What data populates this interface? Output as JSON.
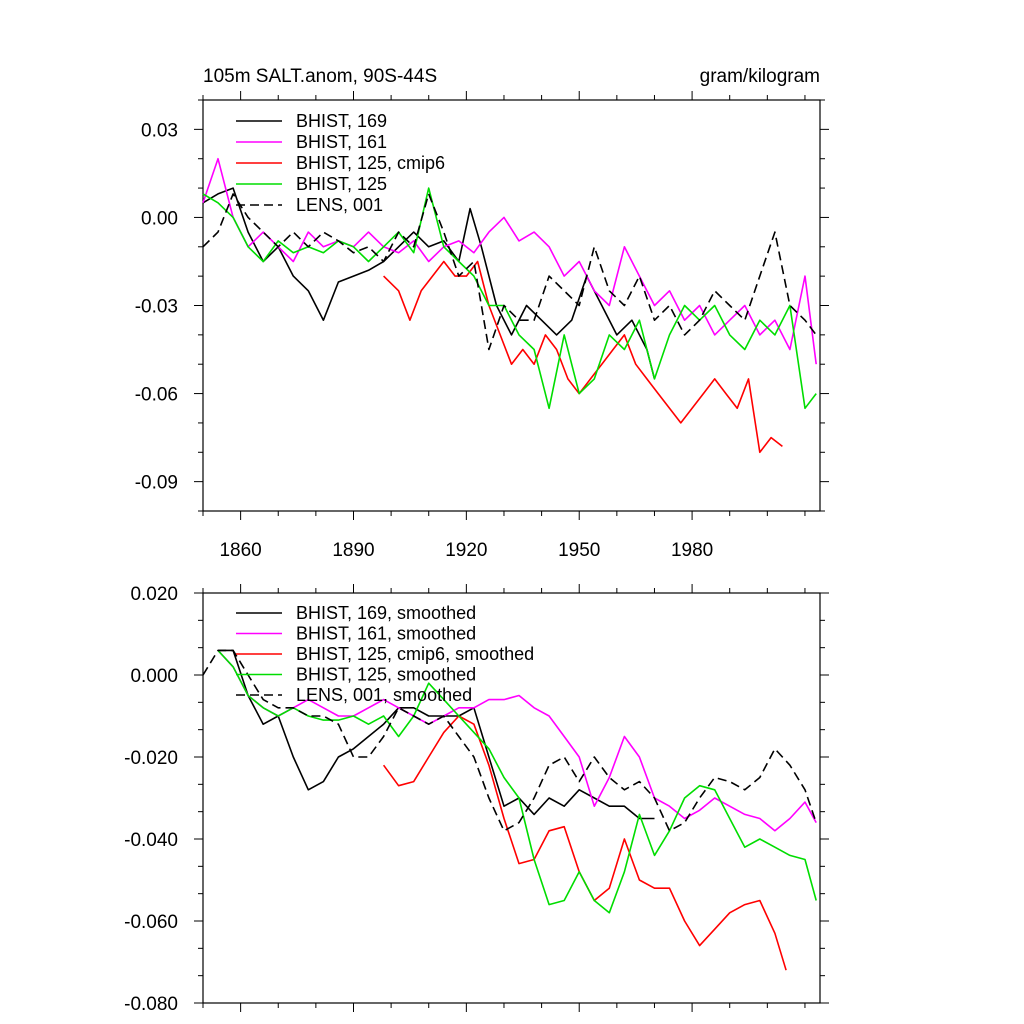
{
  "chart_data": [
    {
      "type": "line",
      "title": "105m SALT.anom, 90S-44S",
      "units": "gram/kilogram",
      "xlim": [
        1850,
        2014
      ],
      "ylim": [
        -0.1,
        0.04
      ],
      "xticks": [
        1860,
        1890,
        1920,
        1950,
        1980
      ],
      "xtick_labels": [
        "1860",
        "1890",
        "1920",
        "1950",
        "1980"
      ],
      "yticks": [
        0.03,
        0.0,
        -0.03,
        -0.06,
        -0.09
      ],
      "ytick_labels": [
        "0.03",
        "0.00",
        "-0.03",
        "-0.06",
        "-0.09"
      ],
      "legend_position": "top-left",
      "series": [
        {
          "name": "BHIST, 169",
          "color": "#000000",
          "dash": "solid",
          "x": [
            1850,
            1854,
            1858,
            1862,
            1866,
            1870,
            1874,
            1878,
            1882,
            1886,
            1890,
            1894,
            1898,
            1902,
            1906,
            1910,
            1914,
            1918,
            1921,
            1924,
            1928,
            1932,
            1936,
            1940,
            1944,
            1948,
            1952,
            1956,
            1960,
            1964,
            1968,
            1970
          ],
          "y": [
            0.005,
            0.008,
            0.01,
            -0.005,
            -0.015,
            -0.01,
            -0.02,
            -0.025,
            -0.035,
            -0.022,
            -0.02,
            -0.018,
            -0.015,
            -0.01,
            -0.005,
            -0.01,
            -0.008,
            -0.015,
            0.003,
            -0.01,
            -0.03,
            -0.04,
            -0.03,
            -0.035,
            -0.04,
            -0.035,
            -0.02,
            -0.03,
            -0.04,
            -0.035,
            -0.045,
            -0.055
          ]
        },
        {
          "name": "BHIST, 161",
          "color": "#ff00ff",
          "dash": "solid",
          "x": [
            1850,
            1854,
            1858,
            1862,
            1866,
            1870,
            1874,
            1878,
            1882,
            1886,
            1890,
            1894,
            1898,
            1902,
            1906,
            1910,
            1914,
            1918,
            1922,
            1926,
            1930,
            1934,
            1938,
            1942,
            1946,
            1950,
            1954,
            1958,
            1962,
            1966,
            1970,
            1974,
            1978,
            1982,
            1986,
            1990,
            1994,
            1998,
            2002,
            2006,
            2010,
            2013
          ],
          "y": [
            0.005,
            0.02,
            0.0,
            -0.01,
            -0.005,
            -0.01,
            -0.015,
            -0.005,
            -0.01,
            -0.008,
            -0.01,
            -0.005,
            -0.01,
            -0.012,
            -0.008,
            -0.015,
            -0.01,
            -0.008,
            -0.012,
            -0.005,
            0.0,
            -0.008,
            -0.005,
            -0.01,
            -0.02,
            -0.015,
            -0.025,
            -0.03,
            -0.01,
            -0.02,
            -0.03,
            -0.025,
            -0.035,
            -0.03,
            -0.04,
            -0.035,
            -0.03,
            -0.04,
            -0.035,
            -0.045,
            -0.02,
            -0.05
          ]
        },
        {
          "name": "BHIST, 125, cmip6",
          "color": "#ff0000",
          "dash": "solid",
          "x": [
            1898,
            1902,
            1905,
            1908,
            1911,
            1914,
            1917,
            1920,
            1923,
            1926,
            1929,
            1932,
            1935,
            1938,
            1941,
            1944,
            1947,
            1950,
            1953,
            1956,
            1959,
            1962,
            1965,
            1968,
            1971,
            1974,
            1977,
            1980,
            1983,
            1986,
            1989,
            1992,
            1995,
            1998,
            2001,
            2004
          ],
          "y": [
            -0.02,
            -0.025,
            -0.035,
            -0.025,
            -0.02,
            -0.015,
            -0.02,
            -0.02,
            -0.015,
            -0.03,
            -0.04,
            -0.05,
            -0.045,
            -0.05,
            -0.04,
            -0.045,
            -0.055,
            -0.06,
            -0.055,
            -0.05,
            -0.045,
            -0.04,
            -0.05,
            -0.055,
            -0.06,
            -0.065,
            -0.07,
            -0.065,
            -0.06,
            -0.055,
            -0.06,
            -0.065,
            -0.055,
            -0.08,
            -0.075,
            -0.078
          ]
        },
        {
          "name": "BHIST, 125",
          "color": "#00dd00",
          "dash": "solid",
          "x": [
            1850,
            1854,
            1858,
            1862,
            1866,
            1870,
            1874,
            1878,
            1882,
            1886,
            1890,
            1894,
            1898,
            1902,
            1906,
            1910,
            1914,
            1918,
            1922,
            1926,
            1930,
            1934,
            1938,
            1942,
            1946,
            1950,
            1954,
            1958,
            1962,
            1966,
            1970,
            1974,
            1978,
            1982,
            1986,
            1990,
            1994,
            1998,
            2002,
            2006,
            2010,
            2013
          ],
          "y": [
            0.008,
            0.005,
            0.0,
            -0.01,
            -0.015,
            -0.008,
            -0.012,
            -0.01,
            -0.012,
            -0.008,
            -0.01,
            -0.015,
            -0.01,
            -0.005,
            -0.012,
            0.01,
            -0.01,
            -0.015,
            -0.02,
            -0.03,
            -0.03,
            -0.04,
            -0.045,
            -0.065,
            -0.04,
            -0.06,
            -0.055,
            -0.04,
            -0.045,
            -0.035,
            -0.055,
            -0.04,
            -0.03,
            -0.035,
            -0.03,
            -0.04,
            -0.045,
            -0.035,
            -0.04,
            -0.03,
            -0.065,
            -0.06
          ]
        },
        {
          "name": "LENS, 001",
          "color": "#000000",
          "dash": "dashed",
          "x": [
            1850,
            1854,
            1858,
            1862,
            1866,
            1870,
            1874,
            1878,
            1882,
            1886,
            1890,
            1894,
            1898,
            1902,
            1906,
            1910,
            1914,
            1918,
            1922,
            1926,
            1930,
            1934,
            1938,
            1942,
            1946,
            1950,
            1954,
            1958,
            1962,
            1966,
            1970,
            1974,
            1978,
            1982,
            1986,
            1990,
            1994,
            1998,
            2002,
            2006,
            2010,
            2013
          ],
          "y": [
            -0.01,
            -0.005,
            0.008,
            0.0,
            -0.005,
            -0.01,
            -0.005,
            -0.01,
            -0.005,
            -0.008,
            -0.012,
            -0.01,
            -0.015,
            -0.005,
            -0.01,
            0.008,
            -0.005,
            -0.02,
            -0.015,
            -0.045,
            -0.03,
            -0.035,
            -0.035,
            -0.02,
            -0.025,
            -0.03,
            -0.01,
            -0.025,
            -0.03,
            -0.02,
            -0.035,
            -0.03,
            -0.04,
            -0.035,
            -0.025,
            -0.03,
            -0.035,
            -0.02,
            -0.005,
            -0.03,
            -0.035,
            -0.04
          ]
        }
      ]
    },
    {
      "type": "line",
      "title": "",
      "xlim": [
        1850,
        2014
      ],
      "ylim": [
        -0.08,
        0.02
      ],
      "xticks": [
        1860,
        1890,
        1920,
        1950,
        1980
      ],
      "yticks": [
        0.02,
        0.0,
        -0.02,
        -0.04,
        -0.06,
        -0.08
      ],
      "ytick_labels": [
        "0.020",
        "0.000",
        "-0.020",
        "-0.040",
        "-0.060",
        "-0.080"
      ],
      "legend_position": "top-left",
      "series": [
        {
          "name": "BHIST, 169, smoothed",
          "color": "#000000",
          "dash": "solid",
          "x": [
            1854,
            1858,
            1862,
            1866,
            1870,
            1874,
            1878,
            1882,
            1886,
            1890,
            1894,
            1898,
            1902,
            1906,
            1910,
            1914,
            1918,
            1922,
            1926,
            1930,
            1934,
            1938,
            1942,
            1946,
            1950,
            1954,
            1958,
            1962,
            1966,
            1970
          ],
          "y": [
            0.006,
            0.006,
            -0.005,
            -0.012,
            -0.01,
            -0.02,
            -0.028,
            -0.026,
            -0.02,
            -0.018,
            -0.015,
            -0.012,
            -0.008,
            -0.008,
            -0.01,
            -0.01,
            -0.01,
            -0.008,
            -0.02,
            -0.032,
            -0.03,
            -0.034,
            -0.03,
            -0.032,
            -0.028,
            -0.03,
            -0.032,
            -0.032,
            -0.035,
            -0.035
          ]
        },
        {
          "name": "BHIST, 161, smoothed",
          "color": "#ff00ff",
          "dash": "solid",
          "x": [
            1854,
            1858,
            1862,
            1866,
            1870,
            1874,
            1878,
            1882,
            1886,
            1890,
            1894,
            1898,
            1902,
            1906,
            1910,
            1914,
            1918,
            1922,
            1926,
            1930,
            1934,
            1938,
            1942,
            1946,
            1950,
            1954,
            1958,
            1962,
            1966,
            1970,
            1974,
            1978,
            1982,
            1986,
            1990,
            1994,
            1998,
            2002,
            2006,
            2010,
            2013
          ],
          "y": [
            0.006,
            0.002,
            -0.005,
            -0.008,
            -0.01,
            -0.008,
            -0.006,
            -0.008,
            -0.01,
            -0.01,
            -0.008,
            -0.006,
            -0.008,
            -0.01,
            -0.012,
            -0.01,
            -0.008,
            -0.008,
            -0.006,
            -0.006,
            -0.005,
            -0.008,
            -0.01,
            -0.015,
            -0.02,
            -0.032,
            -0.025,
            -0.015,
            -0.02,
            -0.03,
            -0.032,
            -0.035,
            -0.033,
            -0.03,
            -0.032,
            -0.034,
            -0.035,
            -0.038,
            -0.035,
            -0.031,
            -0.036
          ]
        },
        {
          "name": "BHIST, 125, cmip6, smoothed",
          "color": "#ff0000",
          "dash": "solid",
          "x": [
            1898,
            1902,
            1906,
            1910,
            1914,
            1918,
            1922,
            1926,
            1930,
            1934,
            1938,
            1942,
            1946,
            1950,
            1954,
            1958,
            1962,
            1966,
            1970,
            1974,
            1978,
            1982,
            1986,
            1990,
            1994,
            1998,
            2002,
            2005
          ],
          "y": [
            -0.022,
            -0.027,
            -0.026,
            -0.02,
            -0.014,
            -0.01,
            -0.012,
            -0.022,
            -0.035,
            -0.046,
            -0.045,
            -0.038,
            -0.037,
            -0.048,
            -0.055,
            -0.052,
            -0.04,
            -0.05,
            -0.052,
            -0.052,
            -0.06,
            -0.066,
            -0.062,
            -0.058,
            -0.056,
            -0.055,
            -0.063,
            -0.072
          ]
        },
        {
          "name": "BHIST, 125, smoothed",
          "color": "#00dd00",
          "dash": "solid",
          "x": [
            1854,
            1858,
            1862,
            1866,
            1870,
            1874,
            1878,
            1882,
            1886,
            1890,
            1894,
            1898,
            1902,
            1906,
            1910,
            1914,
            1918,
            1922,
            1926,
            1930,
            1934,
            1938,
            1942,
            1946,
            1950,
            1954,
            1958,
            1962,
            1966,
            1970,
            1974,
            1978,
            1982,
            1986,
            1990,
            1994,
            1998,
            2002,
            2006,
            2010,
            2013
          ],
          "y": [
            0.006,
            0.002,
            -0.005,
            -0.008,
            -0.01,
            -0.008,
            -0.01,
            -0.011,
            -0.011,
            -0.01,
            -0.012,
            -0.01,
            -0.015,
            -0.01,
            -0.002,
            -0.006,
            -0.01,
            -0.014,
            -0.018,
            -0.025,
            -0.03,
            -0.045,
            -0.056,
            -0.055,
            -0.048,
            -0.055,
            -0.058,
            -0.048,
            -0.034,
            -0.044,
            -0.038,
            -0.03,
            -0.027,
            -0.028,
            -0.035,
            -0.042,
            -0.04,
            -0.042,
            -0.044,
            -0.045,
            -0.055
          ]
        },
        {
          "name": "LENS, 001, smoothed",
          "color": "#000000",
          "dash": "dashed",
          "x": [
            1850,
            1854,
            1858,
            1862,
            1866,
            1870,
            1874,
            1878,
            1882,
            1886,
            1890,
            1894,
            1898,
            1902,
            1906,
            1910,
            1914,
            1918,
            1922,
            1926,
            1930,
            1934,
            1938,
            1942,
            1946,
            1950,
            1954,
            1958,
            1962,
            1966,
            1970,
            1974,
            1978,
            1982,
            1986,
            1990,
            1994,
            1998,
            2002,
            2006,
            2010,
            2013
          ],
          "y": [
            0.0,
            0.006,
            0.006,
            0.0,
            -0.006,
            -0.008,
            -0.008,
            -0.01,
            -0.01,
            -0.012,
            -0.02,
            -0.02,
            -0.015,
            -0.008,
            -0.01,
            -0.012,
            -0.01,
            -0.015,
            -0.02,
            -0.03,
            -0.038,
            -0.036,
            -0.03,
            -0.022,
            -0.02,
            -0.026,
            -0.02,
            -0.025,
            -0.028,
            -0.026,
            -0.03,
            -0.038,
            -0.036,
            -0.03,
            -0.025,
            -0.026,
            -0.028,
            -0.025,
            -0.018,
            -0.022,
            -0.028,
            -0.036
          ]
        }
      ]
    }
  ]
}
